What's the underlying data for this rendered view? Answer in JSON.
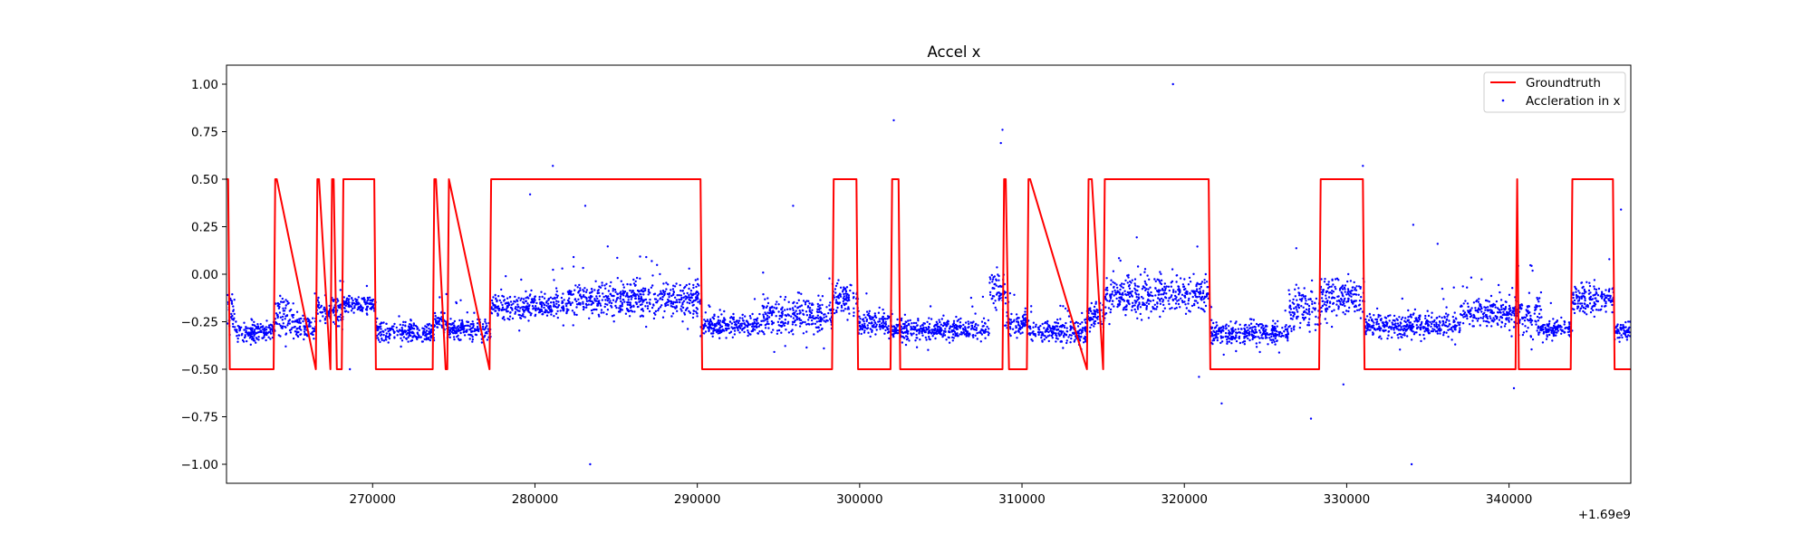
{
  "chart_data": {
    "type": "line",
    "title": "Accel x",
    "xlabel": "",
    "ylabel": "",
    "x_offset_text": "+1.69e9",
    "xlim": [
      261000,
      347500
    ],
    "ylim": [
      -1.1,
      1.1
    ],
    "x_ticks": [
      270000,
      280000,
      290000,
      300000,
      310000,
      320000,
      330000,
      340000
    ],
    "x_tick_labels": [
      "270000",
      "280000",
      "290000",
      "300000",
      "310000",
      "320000",
      "330000",
      "340000"
    ],
    "y_ticks": [
      -1.0,
      -0.75,
      -0.5,
      -0.25,
      0.0,
      0.25,
      0.5,
      0.75,
      1.0
    ],
    "y_tick_labels": [
      "−1.00",
      "−0.75",
      "−0.50",
      "−0.25",
      "0.00",
      "0.25",
      "0.50",
      "0.75",
      "1.00"
    ],
    "grid": false,
    "legend_position": "top-right",
    "series": [
      {
        "name": "Groundtruth",
        "kind": "line",
        "color": "#ff0000",
        "x": [
          261000,
          261100,
          261200,
          263900,
          264000,
          264100,
          266500,
          266600,
          266700,
          267400,
          267500,
          267600,
          267800,
          268100,
          268200,
          268300,
          270100,
          270200,
          273700,
          273800,
          273900,
          274500,
          274600,
          274700,
          277200,
          277300,
          290200,
          290300,
          298300,
          298400,
          299800,
          299900,
          301900,
          302000,
          302400,
          302500,
          308800,
          308900,
          309000,
          309200,
          310300,
          310400,
          310500,
          314000,
          314100,
          314300,
          315000,
          315100,
          321500,
          321600,
          328300,
          328400,
          331000,
          331100,
          340400,
          340500,
          340600,
          343800,
          343900,
          346400,
          346500,
          347500
        ],
        "y": [
          0.5,
          0.5,
          -0.5,
          -0.5,
          0.5,
          0.5,
          -0.5,
          0.5,
          0.5,
          -0.5,
          0.5,
          0.5,
          -0.5,
          -0.5,
          0.5,
          0.5,
          0.5,
          -0.5,
          -0.5,
          0.5,
          0.5,
          -0.5,
          -0.5,
          0.5,
          -0.5,
          0.5,
          0.5,
          -0.5,
          -0.5,
          0.5,
          0.5,
          -0.5,
          -0.5,
          0.5,
          0.5,
          -0.5,
          -0.5,
          0.5,
          0.5,
          -0.5,
          -0.5,
          0.5,
          0.5,
          -0.5,
          0.5,
          0.5,
          -0.5,
          0.5,
          0.5,
          -0.5,
          -0.5,
          0.5,
          0.5,
          -0.5,
          -0.5,
          0.5,
          -0.5,
          -0.5,
          0.5,
          0.5,
          -0.5,
          -0.5
        ]
      },
      {
        "name": "Accleration in x",
        "kind": "scatter",
        "color": "#0000ff",
        "segments": [
          {
            "x": [
              261000,
              261500
            ],
            "center": -0.2,
            "spread": 0.1
          },
          {
            "x": [
              261500,
              264000
            ],
            "center": -0.3,
            "spread": 0.06
          },
          {
            "x": [
              264000,
              265200
            ],
            "center": -0.22,
            "spread": 0.12
          },
          {
            "x": [
              265200,
              266500
            ],
            "center": -0.28,
            "spread": 0.07
          },
          {
            "x": [
              266500,
              268200
            ],
            "center": -0.2,
            "spread": 0.08
          },
          {
            "x": [
              268200,
              270200
            ],
            "center": -0.16,
            "spread": 0.05
          },
          {
            "x": [
              270200,
              273800
            ],
            "center": -0.3,
            "spread": 0.06
          },
          {
            "x": [
              273800,
              274600
            ],
            "center": -0.25,
            "spread": 0.06
          },
          {
            "x": [
              274600,
              277300
            ],
            "center": -0.29,
            "spread": 0.06
          },
          {
            "x": [
              277300,
              282000
            ],
            "center": -0.17,
            "spread": 0.07
          },
          {
            "x": [
              282000,
              290200
            ],
            "center": -0.13,
            "spread": 0.1
          },
          {
            "x": [
              290200,
              294000
            ],
            "center": -0.27,
            "spread": 0.06
          },
          {
            "x": [
              294000,
              298300
            ],
            "center": -0.22,
            "spread": 0.1
          },
          {
            "x": [
              298300,
              299900
            ],
            "center": -0.12,
            "spread": 0.1
          },
          {
            "x": [
              299900,
              302000
            ],
            "center": -0.26,
            "spread": 0.07
          },
          {
            "x": [
              302000,
              308000
            ],
            "center": -0.29,
            "spread": 0.06
          },
          {
            "x": [
              308000,
              309000
            ],
            "center": -0.1,
            "spread": 0.12
          },
          {
            "x": [
              309000,
              310400
            ],
            "center": -0.26,
            "spread": 0.07
          },
          {
            "x": [
              310400,
              314000
            ],
            "center": -0.3,
            "spread": 0.06
          },
          {
            "x": [
              314000,
              315100
            ],
            "center": -0.22,
            "spread": 0.08
          },
          {
            "x": [
              315100,
              321600
            ],
            "center": -0.11,
            "spread": 0.11
          },
          {
            "x": [
              321600,
              326400
            ],
            "center": -0.31,
            "spread": 0.06
          },
          {
            "x": [
              326400,
              328400
            ],
            "center": -0.18,
            "spread": 0.14
          },
          {
            "x": [
              328400,
              331100
            ],
            "center": -0.12,
            "spread": 0.1
          },
          {
            "x": [
              331100,
              337000
            ],
            "center": -0.27,
            "spread": 0.07
          },
          {
            "x": [
              337000,
              340500
            ],
            "center": -0.2,
            "spread": 0.08
          },
          {
            "x": [
              340500,
              342000
            ],
            "center": -0.22,
            "spread": 0.12
          },
          {
            "x": [
              342000,
              343900
            ],
            "center": -0.29,
            "spread": 0.05
          },
          {
            "x": [
              343900,
              346500
            ],
            "center": -0.13,
            "spread": 0.09
          },
          {
            "x": [
              346500,
              347500
            ],
            "center": -0.3,
            "spread": 0.05
          }
        ],
        "outliers": [
          {
            "x": 283400,
            "y": -1.0
          },
          {
            "x": 319300,
            "y": 1.0
          },
          {
            "x": 302100,
            "y": 0.81
          },
          {
            "x": 308800,
            "y": 0.76
          },
          {
            "x": 308700,
            "y": 0.69
          },
          {
            "x": 281100,
            "y": 0.57
          },
          {
            "x": 331000,
            "y": 0.57
          },
          {
            "x": 334000,
            "y": -1.0
          },
          {
            "x": 327800,
            "y": -0.76
          },
          {
            "x": 322300,
            "y": -0.68
          },
          {
            "x": 340300,
            "y": -0.6
          },
          {
            "x": 329800,
            "y": -0.58
          },
          {
            "x": 320900,
            "y": -0.54
          },
          {
            "x": 268600,
            "y": -0.5
          },
          {
            "x": 295900,
            "y": 0.36
          },
          {
            "x": 283100,
            "y": 0.36
          },
          {
            "x": 346900,
            "y": 0.34
          },
          {
            "x": 279700,
            "y": 0.42
          },
          {
            "x": 335600,
            "y": 0.16
          },
          {
            "x": 334100,
            "y": 0.26
          }
        ]
      }
    ]
  }
}
